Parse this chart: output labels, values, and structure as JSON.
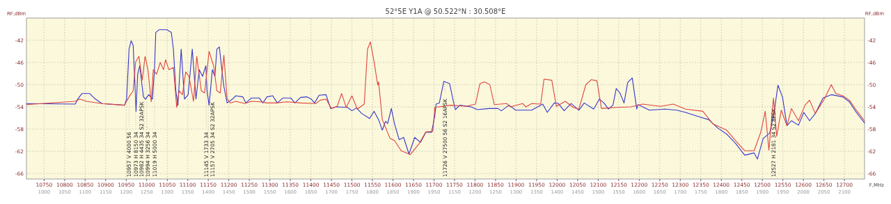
{
  "chart_data": {
    "type": "line",
    "title": "52°5E Y1A @ 50.522°N : 30.508°E",
    "xlabel": "F,MHz",
    "ylabel": "RF,dBm",
    "y2label": "RF,dBm",
    "xlim": [
      10707,
      12749
    ],
    "ylim": [
      -67,
      -38
    ],
    "y2lim": [
      -67,
      -38
    ],
    "xticks": [
      10750,
      10800,
      10850,
      10900,
      10950,
      11000,
      11050,
      11100,
      11150,
      11200,
      11250,
      11300,
      11350,
      11400,
      11450,
      11500,
      11550,
      11600,
      11650,
      11700,
      11750,
      11800,
      11850,
      11900,
      11950,
      12000,
      12050,
      12100,
      12150,
      12200,
      12250,
      12300,
      12350,
      12400,
      12450,
      12500,
      12550,
      12600,
      12650,
      12700
    ],
    "yticks": [
      -42,
      -46,
      -50,
      -54,
      -58,
      -62,
      -66
    ],
    "y2ticks": [
      -42,
      -46,
      -50,
      -54,
      -58,
      -62,
      -66
    ],
    "grid": true,
    "series": [
      {
        "color": "#3535cc",
        "x": [
          10707,
          10826,
          10832,
          10842,
          10861,
          10875,
          10891,
          10946,
          10951,
          10957,
          10962,
          10967,
          10972,
          10974,
          10978,
          10983,
          10986,
          10992,
          10997,
          11005,
          11014,
          11019,
          11022,
          11030,
          11049,
          11060,
          11065,
          11071,
          11076,
          11084,
          11092,
          11101,
          11111,
          11120,
          11128,
          11136,
          11144,
          11147,
          11152,
          11160,
          11166,
          11171,
          11177,
          11182,
          11188,
          11196,
          11209,
          11217,
          11234,
          11242,
          11255,
          11274,
          11283,
          11293,
          11307,
          11318,
          11332,
          11351,
          11361,
          11375,
          11390,
          11401,
          11409,
          11420,
          11437,
          11448,
          11461,
          11489,
          11500,
          11511,
          11524,
          11543,
          11554,
          11565,
          11574,
          11582,
          11587,
          11596,
          11604,
          11615,
          11626,
          11639,
          11653,
          11667,
          11680,
          11694,
          11702,
          11705,
          11713,
          11724,
          11738,
          11746,
          11752,
          11763,
          11790,
          11806,
          11834,
          11856,
          11864,
          11883,
          11899,
          11938,
          11965,
          11976,
          11993,
          12003,
          12017,
          12034,
          12053,
          12066,
          12089,
          12103,
          12114,
          12125,
          12136,
          12144,
          12153,
          12163,
          12172,
          12183,
          12194,
          12197,
          12225,
          12263,
          12291,
          12313,
          12347,
          12369,
          12391,
          12413,
          12435,
          12457,
          12480,
          12488,
          12502,
          12518,
          12529,
          12538,
          12549,
          12560,
          12571,
          12588,
          12601,
          12615,
          12629,
          12648,
          12668,
          12696,
          12712,
          12729,
          12749
        ],
        "values": [
          -53.4,
          -53.5,
          -52.6,
          -51.6,
          -51.6,
          -52.6,
          -53.4,
          -53.7,
          -52.6,
          -43.6,
          -42.1,
          -42.9,
          -51.1,
          -54.8,
          -48.1,
          -46.6,
          -48.5,
          -52.2,
          -52.6,
          -51.8,
          -52.6,
          -47.3,
          -40.6,
          -40.1,
          -40.1,
          -40.6,
          -43.6,
          -51.1,
          -53.7,
          -43.6,
          -52.6,
          -51.8,
          -43.6,
          -52.6,
          -47.3,
          -48.5,
          -46.6,
          -51.1,
          -53.7,
          -47.3,
          -48.5,
          -43.6,
          -43.2,
          -46.6,
          -50.3,
          -53.3,
          -52.6,
          -52.0,
          -52.2,
          -53.3,
          -52.4,
          -52.4,
          -53.3,
          -52.2,
          -52.0,
          -53.3,
          -52.4,
          -52.4,
          -53.3,
          -52.3,
          -52.2,
          -52.6,
          -53.3,
          -51.9,
          -51.8,
          -54.3,
          -54.0,
          -54.1,
          -54.7,
          -54.2,
          -55.2,
          -56.1,
          -54.8,
          -56.3,
          -58.2,
          -56.6,
          -57.0,
          -54.3,
          -57.1,
          -59.9,
          -59.5,
          -62.5,
          -59.5,
          -60.4,
          -58.6,
          -58.6,
          -55.6,
          -53.5,
          -53.3,
          -49.4,
          -49.8,
          -52.6,
          -54.5,
          -53.7,
          -54.0,
          -54.5,
          -54.3,
          -54.3,
          -54.7,
          -53.7,
          -54.6,
          -54.6,
          -53.5,
          -55.0,
          -53.3,
          -53.4,
          -54.7,
          -53.4,
          -54.6,
          -53.3,
          -54.4,
          -52.6,
          -53.3,
          -54.4,
          -53.7,
          -50.7,
          -51.5,
          -53.3,
          -49.6,
          -48.8,
          -54.4,
          -53.6,
          -54.6,
          -54.4,
          -54.6,
          -55.0,
          -55.8,
          -56.3,
          -57.8,
          -58.9,
          -60.6,
          -62.7,
          -62.3,
          -63.4,
          -59.7,
          -58.7,
          -54.8,
          -50.1,
          -52.2,
          -57.4,
          -56.5,
          -57.3,
          -55.0,
          -56.5,
          -55.2,
          -52.4,
          -51.8,
          -52.2,
          -53.1,
          -55.0,
          -56.9
        ]
      },
      {
        "color": "#e0443c",
        "x": [
          10707,
          10826,
          10837,
          10853,
          10891,
          10946,
          10957,
          10967,
          10973,
          10981,
          10989,
          10996,
          11003,
          11011,
          11016,
          11024,
          11033,
          11041,
          11046,
          11054,
          11065,
          11073,
          11079,
          11087,
          11095,
          11103,
          11114,
          11122,
          11133,
          11141,
          11152,
          11163,
          11171,
          11179,
          11188,
          11196,
          11204,
          11217,
          11239,
          11255,
          11277,
          11293,
          11315,
          11342,
          11375,
          11412,
          11423,
          11437,
          11450,
          11464,
          11475,
          11486,
          11500,
          11513,
          11530,
          11538,
          11545,
          11554,
          11563,
          11565,
          11574,
          11593,
          11604,
          11620,
          11642,
          11664,
          11680,
          11697,
          11702,
          11741,
          11779,
          11801,
          11812,
          11823,
          11836,
          11847,
          11877,
          11886,
          11916,
          11924,
          11938,
          11960,
          11968,
          11987,
          11998,
          12020,
          12039,
          12053,
          12070,
          12083,
          12097,
          12108,
          12147,
          12180,
          12208,
          12252,
          12283,
          12313,
          12355,
          12380,
          12413,
          12435,
          12457,
          12480,
          12496,
          12507,
          12516,
          12527,
          12535,
          12546,
          12560,
          12571,
          12588,
          12604,
          12615,
          12629,
          12651,
          12668,
          12679,
          12696,
          12712,
          12729,
          12749
        ],
        "values": [
          -53.6,
          -53.0,
          -52.6,
          -53.0,
          -53.4,
          -53.7,
          -52.2,
          -51.1,
          -45.9,
          -44.9,
          -49.2,
          -44.9,
          -47.3,
          -53.1,
          -47.3,
          -48.1,
          -46.0,
          -47.3,
          -45.5,
          -47.3,
          -46.9,
          -54.1,
          -51.1,
          -51.8,
          -47.7,
          -48.5,
          -53.0,
          -44.9,
          -51.1,
          -51.5,
          -44.0,
          -46.6,
          -51.1,
          -51.5,
          -44.7,
          -52.6,
          -53.3,
          -53.0,
          -53.4,
          -53.0,
          -53.1,
          -53.3,
          -53.3,
          -53.1,
          -53.3,
          -53.4,
          -52.8,
          -52.6,
          -54.3,
          -53.9,
          -51.6,
          -54.1,
          -52.0,
          -54.4,
          -53.5,
          -43.6,
          -42.3,
          -45.9,
          -50.1,
          -49.5,
          -56.3,
          -59.7,
          -60.1,
          -61.9,
          -62.6,
          -60.6,
          -58.5,
          -58.4,
          -54.1,
          -53.7,
          -53.9,
          -53.5,
          -49.8,
          -49.5,
          -50.0,
          -53.6,
          -53.4,
          -54.0,
          -53.4,
          -54.0,
          -53.4,
          -53.5,
          -49.0,
          -49.2,
          -53.9,
          -53.0,
          -54.1,
          -54.4,
          -50.0,
          -49.1,
          -49.3,
          -54.3,
          -54.1,
          -54.0,
          -53.5,
          -53.9,
          -53.5,
          -54.4,
          -54.8,
          -57.1,
          -58.2,
          -60.1,
          -61.9,
          -61.9,
          -58.6,
          -54.8,
          -61.8,
          -52.4,
          -59.3,
          -54.6,
          -57.4,
          -54.3,
          -56.5,
          -53.7,
          -52.8,
          -55.2,
          -52.6,
          -50.0,
          -51.6,
          -52.0,
          -52.8,
          -54.6,
          -56.5
        ]
      }
    ],
    "annotations": [
      {
        "text": "10957 V 4000 56",
        "x": 10957,
        "y": -43.6
      },
      {
        "text": "10973 H 8150 34",
        "x": 10973,
        "y": -45.9
      },
      {
        "text": "10982 H 4435 34 S2 32APSK",
        "x": 10982,
        "y": -45.4
      },
      {
        "text": "10994 H 3256 34",
        "x": 10994,
        "y": -46.1
      },
      {
        "text": "11019 H 5000 34",
        "x": 11019,
        "y": -47.6
      },
      {
        "text": "11145 V 1733 34",
        "x": 11145,
        "y": -48.1
      },
      {
        "text": "11157 V 2705 34 S2 32APSK",
        "x": 11157,
        "y": -49.7
      },
      {
        "text": "11726 V 27500 56 S2 16APSK",
        "x": 11726,
        "y": -49.5
      },
      {
        "text": "12527 H 2181 34 S2 8PSK",
        "x": 12527,
        "y": -52.4
      },
      "1000",
      "1050",
      "1100",
      "1150",
      "1200",
      "1250",
      "1300",
      "1350",
      "1400",
      "1450",
      "1500",
      "1550",
      "1600",
      "1650",
      "1700",
      "1750",
      "1800",
      "1850",
      "1900",
      "1950",
      "1150",
      "1200",
      "1250",
      "1300",
      "1350",
      "1400",
      "1450",
      "1500",
      "1550",
      "1600",
      "1650",
      "1700",
      "1750",
      "1800",
      "1850",
      "1900",
      "1950",
      "2000",
      "2050",
      "2100"
    ]
  }
}
